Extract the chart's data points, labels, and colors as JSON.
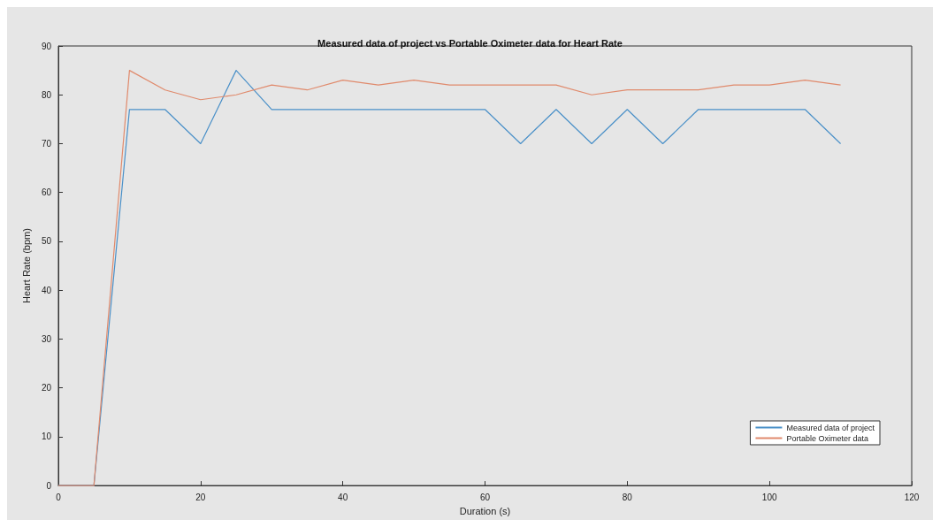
{
  "chart_data": {
    "type": "line",
    "title": "Measured data of project vs Portable Oximeter data for Heart Rate",
    "xlabel": "Duration (s)",
    "ylabel": "Heart Rate (bpm)",
    "x": [
      0,
      5,
      10,
      15,
      20,
      25,
      30,
      35,
      40,
      45,
      50,
      55,
      60,
      65,
      70,
      75,
      80,
      85,
      90,
      95,
      100,
      105,
      110
    ],
    "series": [
      {
        "name": "Measured data of project",
        "color": "#4a90c8",
        "values": [
          0,
          0,
          77,
          77,
          70,
          85,
          77,
          77,
          77,
          77,
          77,
          77,
          77,
          70,
          77,
          70,
          77,
          70,
          77,
          77,
          77,
          77,
          70
        ]
      },
      {
        "name": "Portable Oximeter data",
        "color": "#e08a6c",
        "values": [
          0,
          0,
          85,
          81,
          79,
          80,
          82,
          81,
          83,
          82,
          83,
          82,
          82,
          82,
          82,
          80,
          81,
          81,
          81,
          82,
          82,
          83,
          82
        ]
      }
    ],
    "xlim": [
      0,
      120
    ],
    "xticks": [
      0,
      20,
      40,
      60,
      80,
      100,
      120
    ],
    "ylim": [
      0,
      90
    ],
    "yticks": [
      0,
      10,
      20,
      30,
      40,
      50,
      60,
      70,
      80,
      90
    ],
    "grid": false,
    "legend": "bottom right",
    "marker": "none",
    "line_style": "solid"
  }
}
